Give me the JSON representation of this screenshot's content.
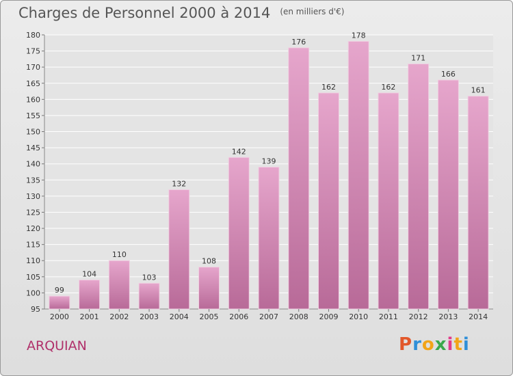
{
  "header": {
    "title": "Charges de Personnel 2000 à 2014",
    "unit": "(en milliers d'€)"
  },
  "footer": {
    "town": "ARQUIAN",
    "logo_text": "Proxiti",
    "logo_colors": [
      "#e2572a",
      "#2f8fd8",
      "#f2a418",
      "#3aa84a",
      "#e23b8a",
      "#f2a418",
      "#2f8fd8"
    ]
  },
  "chart_data": {
    "type": "bar",
    "categories": [
      "2000",
      "2001",
      "2002",
      "2003",
      "2004",
      "2005",
      "2006",
      "2007",
      "2008",
      "2009",
      "2010",
      "2011",
      "2012",
      "2013",
      "2014"
    ],
    "values": [
      99,
      104,
      110,
      103,
      132,
      108,
      142,
      139,
      176,
      162,
      178,
      162,
      171,
      166,
      161
    ],
    "ylim": [
      95,
      180
    ],
    "yticks": [
      95,
      100,
      105,
      110,
      115,
      120,
      125,
      130,
      135,
      140,
      145,
      150,
      155,
      160,
      165,
      170,
      175,
      180
    ],
    "grid": true,
    "bar_color": "#d98cb8"
  }
}
